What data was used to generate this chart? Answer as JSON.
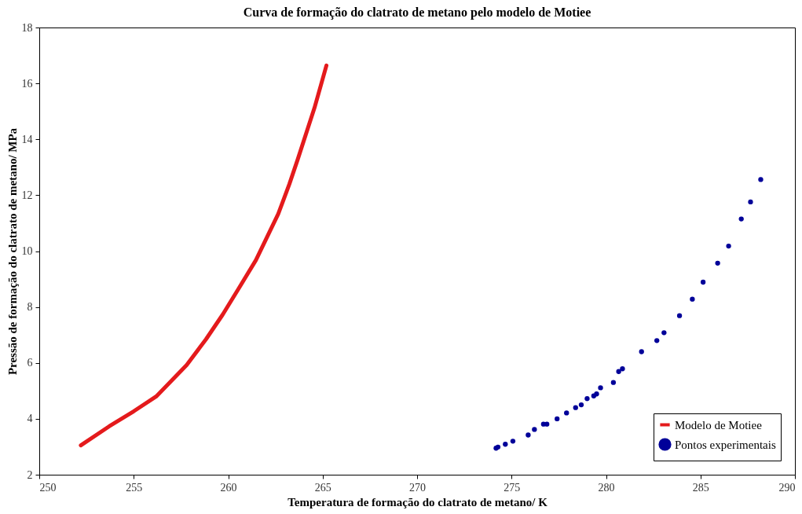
{
  "chart_data": {
    "type": "line",
    "title": "Curva de formação do clatrato de metano pelo modelo de Motiee",
    "xlabel": "Temperatura de formação do clatrato de metano/ K",
    "ylabel": "Pressão de formação do clatrato de metano/ MPa",
    "xlim": [
      250,
      290
    ],
    "xticks": [
      250,
      255,
      260,
      265,
      270,
      275,
      280,
      285,
      290
    ],
    "ylim": [
      2,
      18
    ],
    "yticks": [
      2,
      4,
      6,
      8,
      10,
      12,
      14,
      16,
      18
    ],
    "grid": false,
    "legend": "bottom right",
    "series": [
      {
        "name": "Modelo de Motiee",
        "color": "#e41a1c",
        "marker": "none",
        "x": [
          252.2,
          253.7,
          255.0,
          256.19,
          257.8,
          258.83,
          259.71,
          260.59,
          261.47,
          262.65,
          263.24,
          263.68,
          264.57,
          265.2
        ],
        "values": [
          3.05,
          3.73,
          4.27,
          4.8,
          5.92,
          6.85,
          7.73,
          8.7,
          9.68,
          11.33,
          12.4,
          13.28,
          15.13,
          16.64
        ]
      },
      {
        "name": "Pontos experimentais",
        "type": "scatter",
        "color": "#000099",
        "marker": "circle",
        "x": [
          274.18,
          274.28,
          274.67,
          275.07,
          275.88,
          276.21,
          276.69,
          276.87,
          277.41,
          277.91,
          278.39,
          278.69,
          279.0,
          279.35,
          279.5,
          279.71,
          280.39,
          280.67,
          280.87,
          281.88,
          282.69,
          283.07,
          283.89,
          284.57,
          285.14,
          285.91,
          286.49,
          287.16,
          287.65,
          288.19
        ],
        "values": [
          2.95,
          2.99,
          3.09,
          3.2,
          3.42,
          3.62,
          3.81,
          3.81,
          4.0,
          4.21,
          4.4,
          4.5,
          4.72,
          4.82,
          4.89,
          5.11,
          5.3,
          5.69,
          5.79,
          6.4,
          6.8,
          7.08,
          7.69,
          8.28,
          8.89,
          9.57,
          10.18,
          11.15,
          11.76,
          12.56
        ]
      }
    ]
  }
}
